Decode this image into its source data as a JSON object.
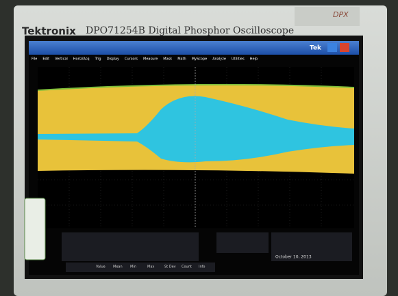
{
  "header": {
    "brand": "Tektronix",
    "model": "DPO71254B Digital Phosphor Oscilloscope",
    "badge": "DPX"
  },
  "window": {
    "logo": "Tek",
    "menu": [
      "File",
      "Edit",
      "Vertical",
      "Horiz/Acq",
      "Trig",
      "Display",
      "Cursors",
      "Measure",
      "Mask",
      "Math",
      "MyScope",
      "Analyze",
      "Utilities",
      "Help"
    ]
  },
  "measurements": {
    "columns": [
      "Value",
      "Mean",
      "Min",
      "Max",
      "St Dev",
      "Count",
      "Info"
    ]
  },
  "status": {
    "date": "October 10, 2013"
  }
}
